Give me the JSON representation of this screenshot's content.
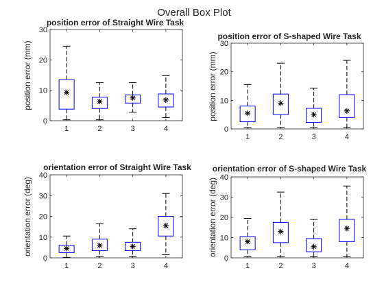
{
  "figure": {
    "title": "Overall Box Plot"
  },
  "chart_data": [
    {
      "type": "box",
      "title": "position error of Straight Wire Task",
      "xlabel": "",
      "ylabel": "position error (mm)",
      "ylim": [
        0,
        30
      ],
      "yticks": [
        0,
        10,
        20,
        30
      ],
      "categories": [
        "1",
        "2",
        "3",
        "4"
      ],
      "box_color": "#0000ff",
      "boxes": [
        {
          "whisker_low": 0.3,
          "q1": 3.8,
          "median": 9.3,
          "q3": 13.5,
          "whisker_high": 24.5,
          "mean": 9.3
        },
        {
          "whisker_low": 0.3,
          "q1": 4.0,
          "median": 6.0,
          "q3": 7.7,
          "whisker_high": 12.5,
          "mean": 6.3
        },
        {
          "whisker_low": 2.8,
          "q1": 5.8,
          "median": 7.3,
          "q3": 8.5,
          "whisker_high": 12.5,
          "mean": 7.5
        },
        {
          "whisker_low": 1.0,
          "q1": 4.5,
          "median": 6.8,
          "q3": 8.8,
          "whisker_high": 14.8,
          "mean": 6.8
        }
      ]
    },
    {
      "type": "box",
      "title": "position error of S-shaped Wire Task",
      "xlabel": "",
      "ylabel": "position error (mm)",
      "ylim": [
        0,
        30
      ],
      "yticks": [
        0,
        10,
        20,
        30
      ],
      "categories": [
        "1",
        "2",
        "3",
        "4"
      ],
      "box_color": "#0000ff",
      "boxes": [
        {
          "whisker_low": 0.5,
          "q1": 2.5,
          "median": 5.3,
          "q3": 8.0,
          "whisker_high": 15.5,
          "mean": 5.5
        },
        {
          "whisker_low": 0.5,
          "q1": 5.0,
          "median": 8.8,
          "q3": 12.2,
          "whisker_high": 23.0,
          "mean": 9.0
        },
        {
          "whisker_low": 0.5,
          "q1": 2.3,
          "median": 4.8,
          "q3": 7.2,
          "whisker_high": 14.3,
          "mean": 5.0
        },
        {
          "whisker_low": 0.5,
          "q1": 4.0,
          "median": 6.3,
          "q3": 12.0,
          "whisker_high": 24.0,
          "mean": 6.3
        }
      ]
    },
    {
      "type": "box",
      "title": "orientation error of Straight Wire Task",
      "xlabel": "",
      "ylabel": "orientation error (deg)",
      "ylim": [
        0,
        40
      ],
      "yticks": [
        0,
        10,
        20,
        30,
        40
      ],
      "categories": [
        "1",
        "2",
        "3",
        "4"
      ],
      "box_color": "#0000ff",
      "boxes": [
        {
          "whisker_low": 0.2,
          "q1": 2.5,
          "median": 4.3,
          "q3": 6.0,
          "whisker_high": 10.5,
          "mean": 4.5
        },
        {
          "whisker_low": 0.5,
          "q1": 3.5,
          "median": 5.5,
          "q3": 9.0,
          "whisker_high": 16.5,
          "mean": 6.0
        },
        {
          "whisker_low": 0.5,
          "q1": 3.5,
          "median": 5.5,
          "q3": 7.5,
          "whisker_high": 14.0,
          "mean": 5.5
        },
        {
          "whisker_low": 1.5,
          "q1": 10.5,
          "median": 13.0,
          "q3": 20.0,
          "whisker_high": 31.0,
          "mean": 15.5
        }
      ]
    },
    {
      "type": "box",
      "title": "orientation error of S-shaped Wire Task",
      "xlabel": "",
      "ylabel": "orientation error (deg)",
      "ylim": [
        0,
        40
      ],
      "yticks": [
        0,
        10,
        20,
        30,
        40
      ],
      "categories": [
        "1",
        "2",
        "3",
        "4"
      ],
      "box_color": "#0000ff",
      "boxes": [
        {
          "whisker_low": 0.5,
          "q1": 4.0,
          "median": 7.5,
          "q3": 10.5,
          "whisker_high": 19.5,
          "mean": 8.0
        },
        {
          "whisker_low": 0.5,
          "q1": 7.5,
          "median": 12.0,
          "q3": 17.5,
          "whisker_high": 32.5,
          "mean": 13.0
        },
        {
          "whisker_low": 0.5,
          "q1": 3.0,
          "median": 5.0,
          "q3": 9.5,
          "whisker_high": 19.0,
          "mean": 5.5
        },
        {
          "whisker_low": 0.5,
          "q1": 8.0,
          "median": 12.0,
          "q3": 19.0,
          "whisker_high": 35.5,
          "mean": 14.5
        }
      ]
    }
  ]
}
